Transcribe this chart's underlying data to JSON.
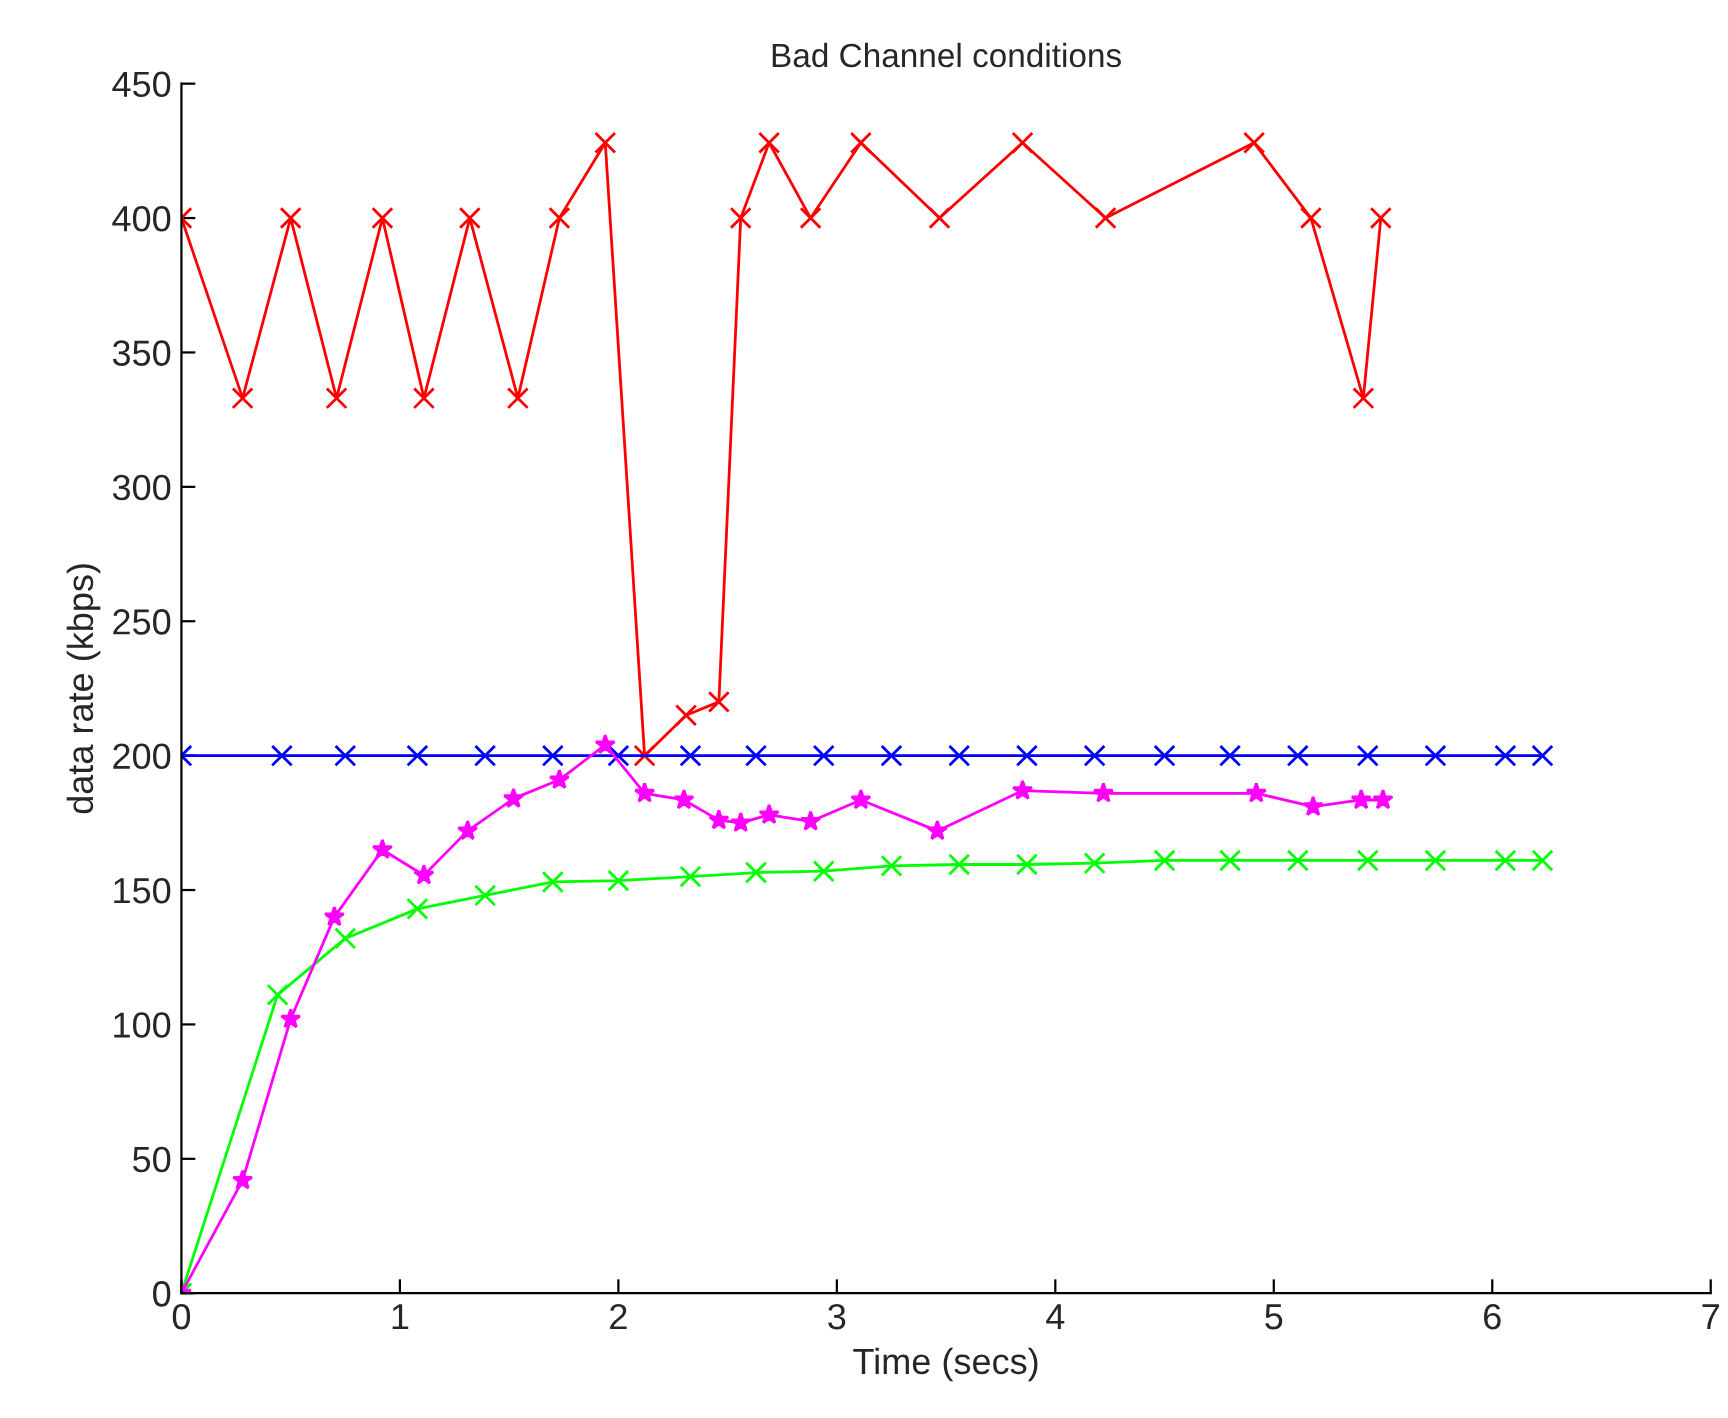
{
  "chart_data": {
    "type": "line",
    "title": "Bad Channel conditions",
    "xlabel": "Time (secs)",
    "ylabel": "data rate (kbps)",
    "xlim": [
      0,
      7
    ],
    "xticks": [
      0,
      1,
      2,
      3,
      4,
      5,
      6,
      7
    ],
    "ylim": [
      0,
      450
    ],
    "yticks": [
      0,
      50,
      100,
      150,
      200,
      250,
      300,
      350,
      400,
      450
    ],
    "grid": false,
    "legend": false,
    "line_style": "solid",
    "series": [
      {
        "color": "#ff0000",
        "marker": "cross",
        "x": [
          0,
          0.28,
          0.5,
          0.71,
          0.92,
          1.11,
          1.32,
          1.54,
          1.73,
          1.94,
          2.12,
          2.31,
          2.46,
          2.56,
          2.69,
          2.88,
          3.11,
          3.47,
          3.85,
          4.23,
          4.91,
          5.17,
          5.41,
          5.49
        ],
        "values": [
          400,
          333,
          400,
          333,
          400,
          333,
          400,
          333,
          400,
          428,
          200,
          215,
          220,
          400,
          428,
          400,
          428,
          400,
          428,
          400,
          428,
          400,
          333,
          400
        ]
      },
      {
        "color": "#0000ff",
        "marker": "cross",
        "x": [
          0,
          0.46,
          0.75,
          1.08,
          1.39,
          1.7,
          2.0,
          2.33,
          2.63,
          2.94,
          3.25,
          3.56,
          3.87,
          4.18,
          4.5,
          4.8,
          5.11,
          5.43,
          5.74,
          6.06,
          6.23
        ],
        "values": [
          200,
          200,
          200,
          200,
          200,
          200,
          200,
          200,
          200,
          200,
          200,
          200,
          200,
          200,
          200,
          200,
          200,
          200,
          200,
          200,
          200
        ]
      },
      {
        "color": "#00ff00",
        "marker": "cross",
        "x": [
          0,
          0.44,
          0.75,
          1.08,
          1.39,
          1.7,
          2.0,
          2.33,
          2.63,
          2.94,
          3.25,
          3.56,
          3.87,
          4.18,
          4.5,
          4.8,
          5.11,
          5.43,
          5.74,
          6.06,
          6.23
        ],
        "values": [
          0,
          111,
          132,
          143,
          148,
          153,
          153.5,
          155,
          156.5,
          157,
          159,
          159.5,
          159.5,
          160,
          161,
          161,
          161,
          161,
          161,
          161,
          161
        ]
      },
      {
        "color": "#ff00ff",
        "marker": "star",
        "x": [
          0,
          0.28,
          0.5,
          0.7,
          0.92,
          1.11,
          1.31,
          1.52,
          1.73,
          1.94,
          2.12,
          2.3,
          2.46,
          2.56,
          2.69,
          2.88,
          3.11,
          3.46,
          3.85,
          4.22,
          4.92,
          5.18,
          5.4,
          5.5
        ],
        "values": [
          0,
          42,
          102,
          140,
          165,
          155.5,
          172,
          184,
          191,
          204,
          186,
          183.5,
          176,
          175,
          178,
          175.5,
          183.5,
          172,
          187,
          186,
          186,
          181,
          183.5,
          183.5
        ]
      }
    ]
  }
}
